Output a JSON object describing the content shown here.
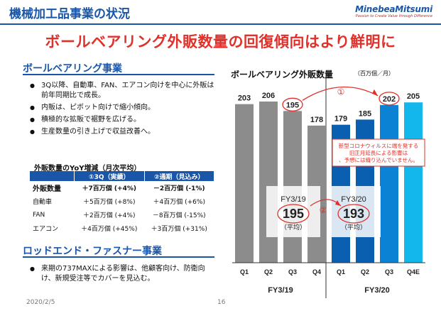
{
  "header": {
    "title": "機械加工品事業の状況",
    "logo_brand": "MinebeaMitsumi",
    "logo_tagline": "Passion to Create Value through Difference"
  },
  "headline": "ボールベアリング外販数量の回復傾向はより鮮明に",
  "left": {
    "section1": {
      "title": "ボールベアリング事業",
      "bullets": [
        "3Q以降、自動車、FAN、エアコン向けを中心に外販は前年同期比で成長。",
        "内販は、ピボット向けで縮小傾向。",
        "積極的な拡販で裾野を広げる。",
        "生産数量の引き上げで収益改善へ。"
      ]
    },
    "yoy": {
      "title": "外販数量のYoY増減（月次平均）",
      "headers": [
        "",
        "①3Q（実績）",
        "②通期（見込み）"
      ],
      "rows": [
        [
          "外販数量",
          "＋7百万個 (+4%)",
          "－2百万個 (-1%)"
        ],
        [
          "自動車",
          "＋5百万個 (+8%)",
          "＋4百万個 (+6%)"
        ],
        [
          "FAN",
          "＋2百万個 (+4%)",
          "－8百万個 (-15%)"
        ],
        [
          "エアコン",
          "＋4百万個 (+45%)",
          "＋3百万個 (+31%)"
        ]
      ]
    },
    "section2": {
      "title": "ロッドエンド・ファスナー事業",
      "bullets": [
        "来期の737MAXによる影響は、他顧客向け、防衛向け、新規受注等でカバーを見込む。"
      ]
    }
  },
  "chart": {
    "title": "ボールベアリング外販数量",
    "unit": "（百万個／月）",
    "note": "新型コロナウィルスに端を発する旧正月延長による影響は、予想には織り込んでいません。",
    "circle1_label": "①",
    "circle2_label": "②",
    "fy19_box": {
      "label": "FY3/19",
      "value": "195",
      "sub": "（平均）"
    },
    "fy20_box": {
      "label": "FY3/20",
      "value": "193",
      "sub": "（平均）"
    }
  },
  "chart_data": {
    "type": "bar",
    "title": "ボールベアリング外販数量",
    "ylabel": "（百万個／月）",
    "categories": [
      "Q1",
      "Q2",
      "Q3",
      "Q4",
      "Q1",
      "Q2",
      "Q3",
      "Q4E"
    ],
    "groups": [
      "FY3/19",
      "FY3/19",
      "FY3/19",
      "FY3/19",
      "FY3/20",
      "FY3/20",
      "FY3/20",
      "FY3/20"
    ],
    "group_labels": [
      "FY3/19",
      "FY3/20"
    ],
    "values": [
      203,
      206,
      195,
      178,
      179,
      185,
      202,
      205
    ],
    "colors": [
      "#8c8c8c",
      "#8c8c8c",
      "#8c8c8c",
      "#8c8c8c",
      "#0b5fb0",
      "#0b5fb0",
      "#0b82d4",
      "#14b7ec"
    ],
    "highlighted": [
      "195",
      "202"
    ]
  },
  "footer": {
    "date": "2020/2/5",
    "page": "16"
  }
}
